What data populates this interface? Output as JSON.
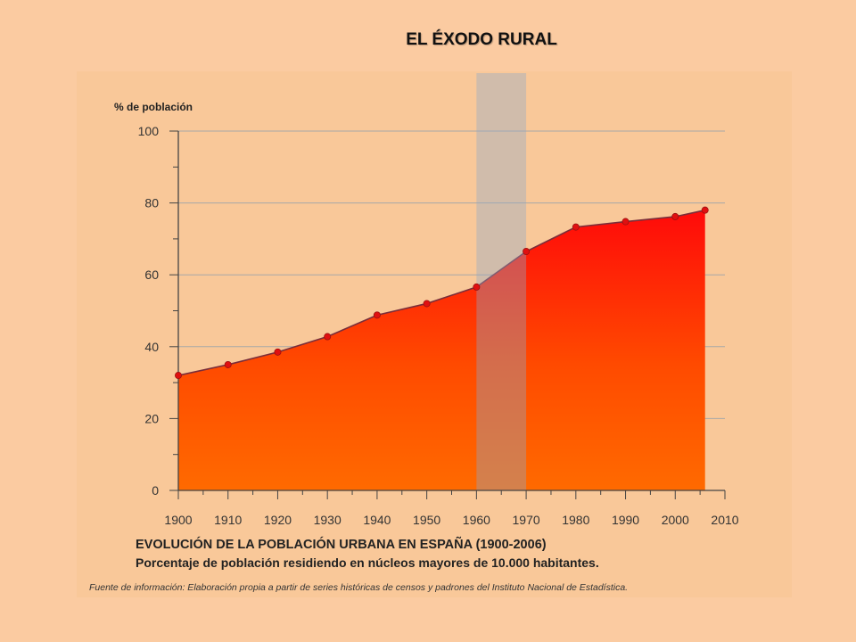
{
  "slide": {
    "title": "EL ÉXODO RURAL"
  },
  "chart_data": {
    "type": "area",
    "title": "EVOLUCIÓN DE LA POBLACIÓN URBANA EN ESPAÑA (1900-2006)",
    "subtitle": "Porcentaje de población residiendo en núcleos mayores de 10.000 habitantes.",
    "source": "Fuente de información: Elaboración propia a partir de series históricas de censos y padrones del Instituto Nacional de Estadística.",
    "ylabel": "% de población",
    "xlabel": "",
    "x": [
      1900,
      1910,
      1920,
      1930,
      1940,
      1950,
      1960,
      1970,
      1980,
      1990,
      2000,
      2006
    ],
    "y": [
      32,
      35,
      38.5,
      42.8,
      48.8,
      52,
      56.6,
      66.5,
      73.3,
      74.8,
      76.2,
      78
    ],
    "xlim": [
      1900,
      2010
    ],
    "ylim": [
      0,
      100
    ],
    "xticks": [
      1900,
      1910,
      1920,
      1930,
      1940,
      1950,
      1960,
      1970,
      1980,
      1990,
      2000,
      2010
    ],
    "yticks": [
      0,
      20,
      40,
      60,
      80,
      100
    ],
    "highlight_band": [
      1960,
      1970
    ],
    "grid": true,
    "colors": {
      "area_bottom": "#FF6A00",
      "area_top": "#FF0A0A",
      "line": "#7A2E3A",
      "marker": "#E01010",
      "band": "#8FA8C8",
      "grid": "#A8A8A8"
    }
  }
}
